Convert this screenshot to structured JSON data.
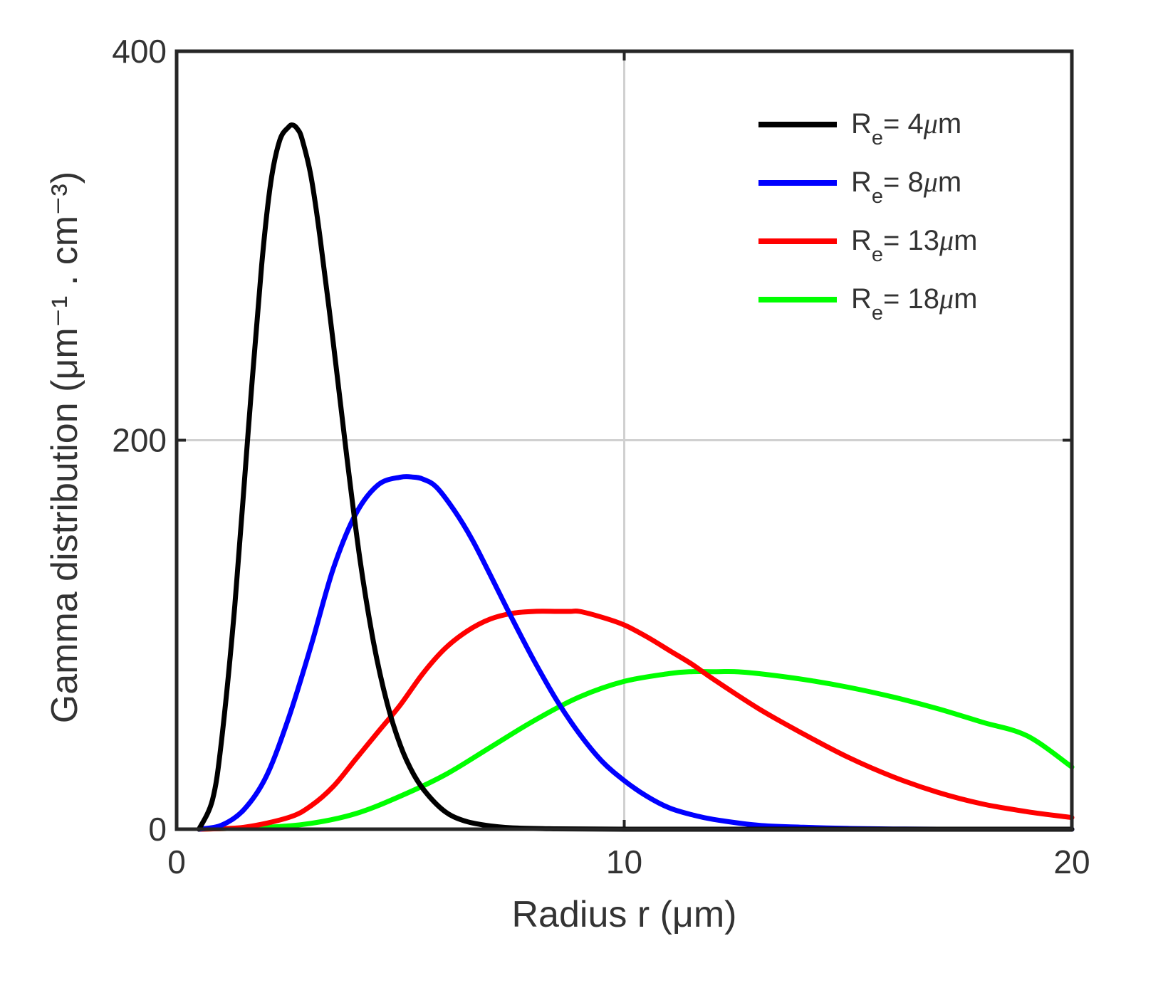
{
  "chart_data": {
    "type": "line",
    "xlabel": "Radius r (μm)",
    "ylabel": "Gamma distribution (μm⁻¹ . cm⁻³)",
    "xlim": [
      0,
      20
    ],
    "ylim": [
      0,
      400
    ],
    "xticks": [
      "0",
      "10",
      "20"
    ],
    "yticks": [
      "0",
      "200",
      "400"
    ],
    "xtick_values": [
      0,
      10,
      20
    ],
    "ytick_values": [
      0,
      200,
      400
    ],
    "grid": true,
    "legend_position": "top-right",
    "legend_sub": "e",
    "series": [
      {
        "name": "Re= 4μm",
        "label_main": "= 4",
        "label_unit": "m",
        "color": "#000000",
        "x": [
          0.5,
          0.8,
          1.0,
          1.3,
          1.6,
          1.9,
          2.1,
          2.3,
          2.5,
          2.6,
          2.7,
          2.8,
          3.0,
          3.2,
          3.5,
          3.8,
          4.1,
          4.4,
          4.7,
          5.0,
          5.3,
          5.6,
          6.0,
          6.4,
          6.9,
          7.5,
          8.5,
          10,
          12,
          15,
          20
        ],
        "y": [
          0,
          15,
          45,
          115,
          205,
          290,
          332,
          354,
          361,
          362,
          360,
          355,
          336,
          305,
          250,
          192,
          138,
          96,
          65,
          43,
          28,
          18,
          9,
          4.5,
          2,
          0.7,
          0.2,
          0,
          0,
          0,
          0
        ]
      },
      {
        "name": "Re= 8μm",
        "label_main": "= 8",
        "label_unit": "m",
        "color": "#0000ff",
        "x": [
          0.5,
          1.0,
          1.5,
          2.0,
          2.5,
          3.0,
          3.5,
          4.0,
          4.5,
          5.0,
          5.3,
          5.5,
          5.8,
          6.2,
          6.6,
          7.0,
          7.5,
          8.0,
          8.5,
          9.0,
          9.5,
          10.0,
          10.5,
          11.0,
          11.5,
          12.0,
          13.0,
          14.0,
          15.0,
          16.0,
          17.0,
          18.0,
          20.0
        ],
        "y": [
          0,
          2,
          10,
          27,
          57,
          94,
          134,
          162,
          177,
          181,
          181,
          180,
          176,
          164,
          149,
          131,
          108,
          86,
          66,
          49,
          35,
          25,
          17,
          11,
          7.5,
          5,
          2,
          1,
          0.4,
          0.1,
          0,
          0,
          0
        ]
      },
      {
        "name": "Re= 13μm",
        "label_main": "= 13",
        "label_unit": "m",
        "color": "#ff0000",
        "x": [
          0.5,
          1.5,
          2.5,
          3.0,
          3.5,
          4.0,
          4.5,
          5.0,
          5.5,
          6.0,
          6.5,
          7.0,
          7.5,
          8.0,
          8.5,
          8.8,
          9.0,
          9.5,
          10.0,
          10.5,
          11.0,
          11.5,
          12.0,
          13.0,
          14.0,
          15.0,
          16.0,
          17.0,
          18.0,
          19.0,
          20.0
        ],
        "y": [
          0,
          1,
          6,
          12,
          22,
          36,
          50,
          64,
          80,
          93,
          102,
          108,
          111,
          112,
          112,
          112,
          112,
          109,
          105,
          99,
          92,
          85,
          77,
          62,
          49,
          37,
          27,
          19,
          13,
          9,
          6
        ]
      },
      {
        "name": "Re= 18μm",
        "label_main": "= 18",
        "label_unit": "m",
        "color": "#00ff00",
        "x": [
          0.5,
          2.0,
          3.0,
          4.0,
          5.0,
          6.0,
          7.0,
          8.0,
          9.0,
          10.0,
          11.0,
          11.5,
          12.0,
          12.5,
          13.0,
          14.0,
          15.0,
          16.0,
          17.0,
          18.0,
          19.0,
          20.0
        ],
        "y": [
          0,
          1,
          3,
          8,
          17,
          28,
          42,
          56,
          68,
          76,
          80,
          81,
          81,
          81,
          80,
          77,
          73,
          68,
          62,
          55,
          48,
          32
        ]
      }
    ]
  }
}
